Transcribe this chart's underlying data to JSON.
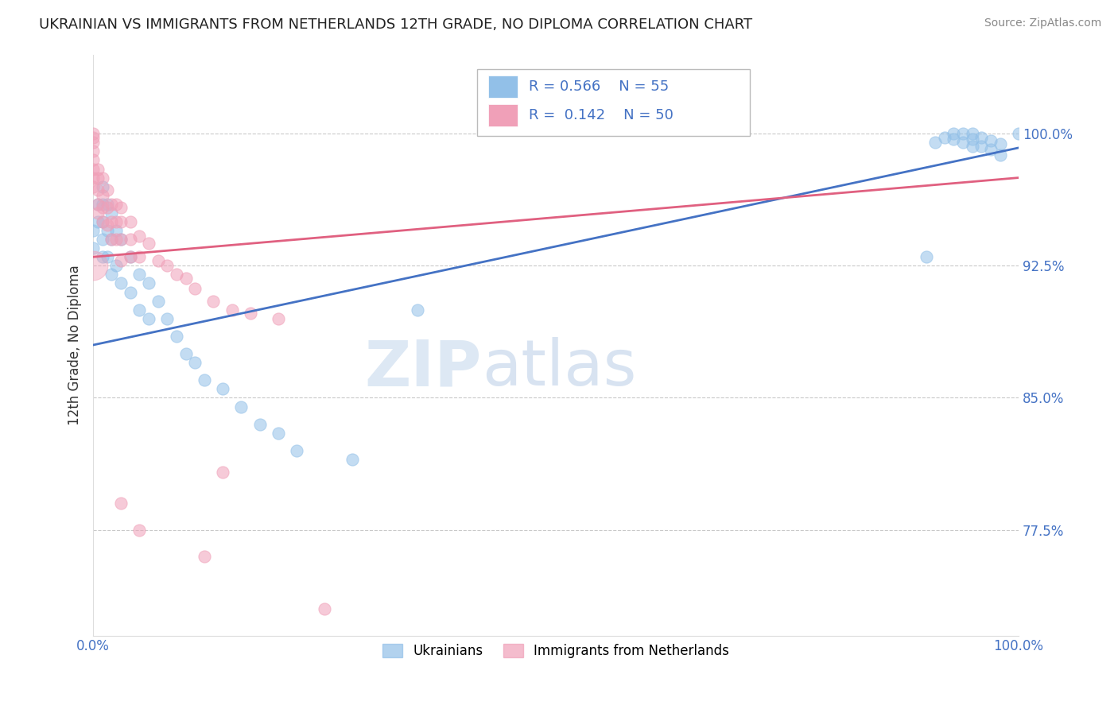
{
  "title": "UKRAINIAN VS IMMIGRANTS FROM NETHERLANDS 12TH GRADE, NO DIPLOMA CORRELATION CHART",
  "source": "Source: ZipAtlas.com",
  "ylabel": "12th Grade, No Diploma",
  "y_ticks": [
    0.775,
    0.85,
    0.925,
    1.0
  ],
  "y_tick_labels": [
    "77.5%",
    "85.0%",
    "92.5%",
    "100.0%"
  ],
  "xlim": [
    0.0,
    1.0
  ],
  "ylim": [
    0.715,
    1.045
  ],
  "legend_entries": [
    "Ukrainians",
    "Immigrants from Netherlands"
  ],
  "R_blue": 0.566,
  "N_blue": 55,
  "R_pink": 0.142,
  "N_pink": 50,
  "blue_color": "#92C0E8",
  "pink_color": "#F0A0B8",
  "blue_line_color": "#4472C4",
  "pink_line_color": "#E06080",
  "background_color": "#FFFFFF",
  "grid_color": "#BBBBBB",
  "title_fontsize": 13,
  "blue_line_x0": 0.0,
  "blue_line_y0": 0.88,
  "blue_line_x1": 1.0,
  "blue_line_y1": 0.992,
  "pink_line_x0": 0.0,
  "pink_line_y0": 0.93,
  "pink_line_x1": 1.0,
  "pink_line_y1": 0.975,
  "blue_x": [
    0.0,
    0.0,
    0.005,
    0.005,
    0.01,
    0.01,
    0.01,
    0.01,
    0.01,
    0.015,
    0.015,
    0.015,
    0.02,
    0.02,
    0.02,
    0.025,
    0.025,
    0.03,
    0.03,
    0.04,
    0.04,
    0.05,
    0.05,
    0.06,
    0.06,
    0.07,
    0.08,
    0.09,
    0.1,
    0.11,
    0.12,
    0.14,
    0.16,
    0.18,
    0.2,
    0.22,
    0.28,
    0.35,
    0.9,
    0.91,
    0.92,
    0.93,
    0.93,
    0.94,
    0.94,
    0.95,
    0.95,
    0.95,
    0.96,
    0.96,
    0.97,
    0.97,
    0.98,
    0.98,
    1.0
  ],
  "blue_y": [
    0.945,
    0.935,
    0.96,
    0.95,
    0.97,
    0.96,
    0.95,
    0.94,
    0.93,
    0.96,
    0.945,
    0.93,
    0.955,
    0.94,
    0.92,
    0.945,
    0.925,
    0.94,
    0.915,
    0.93,
    0.91,
    0.92,
    0.9,
    0.915,
    0.895,
    0.905,
    0.895,
    0.885,
    0.875,
    0.87,
    0.86,
    0.855,
    0.845,
    0.835,
    0.83,
    0.82,
    0.815,
    0.9,
    0.93,
    0.995,
    0.998,
    1.0,
    0.997,
    1.0,
    0.995,
    1.0,
    0.997,
    0.993,
    0.998,
    0.993,
    0.996,
    0.991,
    0.994,
    0.988,
    1.0
  ],
  "pink_x": [
    0.0,
    0.0,
    0.0,
    0.0,
    0.0,
    0.0,
    0.0,
    0.0,
    0.005,
    0.005,
    0.005,
    0.005,
    0.005,
    0.01,
    0.01,
    0.01,
    0.01,
    0.015,
    0.015,
    0.015,
    0.02,
    0.02,
    0.02,
    0.025,
    0.025,
    0.025,
    0.03,
    0.03,
    0.03,
    0.03,
    0.04,
    0.04,
    0.04,
    0.05,
    0.05,
    0.06,
    0.07,
    0.08,
    0.09,
    0.1,
    0.11,
    0.13,
    0.15,
    0.17,
    0.2,
    0.03,
    0.05,
    0.12,
    0.14,
    0.25
  ],
  "pink_y": [
    1.0,
    0.998,
    0.995,
    0.99,
    0.985,
    0.98,
    0.975,
    0.97,
    0.98,
    0.975,
    0.968,
    0.96,
    0.955,
    0.975,
    0.965,
    0.958,
    0.95,
    0.968,
    0.958,
    0.948,
    0.96,
    0.95,
    0.94,
    0.96,
    0.95,
    0.94,
    0.958,
    0.95,
    0.94,
    0.928,
    0.95,
    0.94,
    0.93,
    0.942,
    0.93,
    0.938,
    0.928,
    0.925,
    0.92,
    0.918,
    0.912,
    0.905,
    0.9,
    0.898,
    0.895,
    0.79,
    0.775,
    0.76,
    0.808,
    0.73
  ],
  "big_pink_x": [
    0.0
  ],
  "big_pink_y": [
    0.925
  ]
}
